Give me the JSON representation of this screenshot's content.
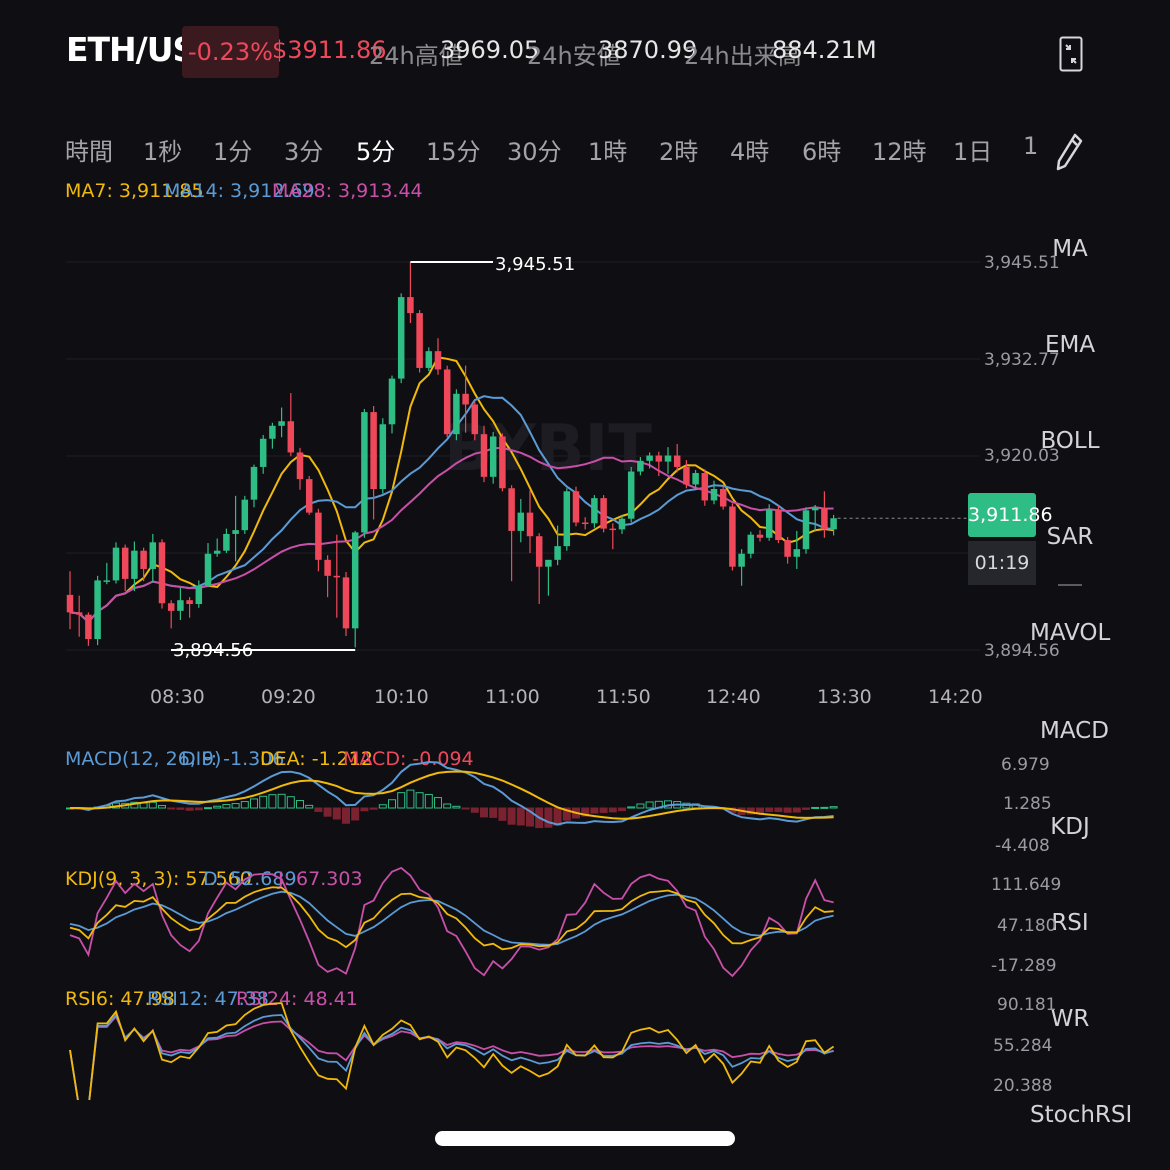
{
  "header": {
    "pair": "ETH/USDT",
    "change": "-0.23%",
    "price": "$3911.86",
    "high_label": "24h高値",
    "high_value": "3969.05",
    "low_label": "24h安値",
    "low_value": "3870.99",
    "vol_label": "24h出来高",
    "vol_value": "884.21M"
  },
  "timeframes": [
    "時間",
    "1秒",
    "1分",
    "3分",
    "5分",
    "15分",
    "30分",
    "1時",
    "2時",
    "4時",
    "6時",
    "12時",
    "1日",
    "1"
  ],
  "active_timeframe": "5分",
  "ma_legend": {
    "ma7": "MA7: 3,911.85",
    "ma14": "MA14: 3,912.69",
    "ma28": "MA28: 3,913.44"
  },
  "side_tabs": [
    "MA",
    "EMA",
    "BOLL",
    "SAR",
    "MAVOL",
    "MACD",
    "KDJ",
    "RSI",
    "WR",
    "StochRSI"
  ],
  "price_axis": [
    "3,945.51",
    "3,932.77",
    "3,920.03",
    "3,894.56"
  ],
  "current_price_tag": "3,911.86",
  "countdown": "01:19",
  "high_marker": "3,945.51",
  "low_marker": "3,894.56",
  "time_axis": [
    "08:30",
    "09:20",
    "10:10",
    "11:00",
    "11:50",
    "12:40",
    "13:30",
    "14:20"
  ],
  "macd": {
    "legend_title": "MACD(12, 26, 9)",
    "dif": "DIF: -1.306",
    "dea": "DEA: -1.212",
    "macd": "MACD: -0.094",
    "axis": [
      "6.979",
      "1.285",
      "-4.408"
    ]
  },
  "kdj": {
    "legend_title": "KDJ(9, 3, 3): 57.560",
    "d": "D: 52.689",
    "j": "J: 67.303",
    "axis": [
      "111.649",
      "47.180",
      "-17.289"
    ]
  },
  "rsi": {
    "rsi6": "RSI6: 47.98",
    "rsi12": "RSI12: 47.38",
    "rsi24": "RSI24: 48.41",
    "axis": [
      "90.181",
      "55.284",
      "20.388"
    ]
  },
  "colors": {
    "up": "#2ebd85",
    "down": "#f0485b",
    "ma7": "#f0b90b",
    "ma14": "#5b9bd5",
    "ma28": "#c850a8",
    "bg": "#0f0f13"
  },
  "chart_data": {
    "type": "candlestick",
    "interval": "5分",
    "ylim": [
      3894.56,
      3945.51
    ],
    "x_ticks": [
      "08:30",
      "09:20",
      "10:10",
      "11:00",
      "11:50",
      "12:40",
      "13:30",
      "14:20"
    ],
    "candles": [
      [
        3901.8,
        3904.9,
        3897.3,
        3899.5
      ],
      [
        3899.5,
        3901.7,
        3896.3,
        3899.2
      ],
      [
        3899.2,
        3899.5,
        3895.1,
        3896.0
      ],
      [
        3896.0,
        3904.3,
        3895.2,
        3903.7
      ],
      [
        3903.7,
        3906.0,
        3903.2,
        3903.7
      ],
      [
        3903.7,
        3908.7,
        3903.3,
        3908.0
      ],
      [
        3908.0,
        3908.4,
        3902.3,
        3903.9
      ],
      [
        3903.9,
        3908.8,
        3902.3,
        3907.6
      ],
      [
        3907.6,
        3908.0,
        3903.6,
        3905.2
      ],
      [
        3905.2,
        3909.8,
        3903.4,
        3908.7
      ],
      [
        3908.7,
        3909.1,
        3900.0,
        3900.7
      ],
      [
        3900.7,
        3901.1,
        3897.4,
        3899.7
      ],
      [
        3899.7,
        3902.7,
        3898.5,
        3901.1
      ],
      [
        3901.1,
        3901.5,
        3898.8,
        3900.6
      ],
      [
        3900.6,
        3903.7,
        3900.1,
        3903.0
      ],
      [
        3903.0,
        3908.6,
        3902.8,
        3907.2
      ],
      [
        3907.2,
        3909.2,
        3906.8,
        3907.6
      ],
      [
        3907.6,
        3910.5,
        3907.3,
        3909.8
      ],
      [
        3909.8,
        3914.8,
        3906.2,
        3910.3
      ],
      [
        3910.3,
        3914.8,
        3909.8,
        3914.3
      ],
      [
        3914.3,
        3918.9,
        3913.3,
        3918.6
      ],
      [
        3918.6,
        3922.8,
        3917.7,
        3922.3
      ],
      [
        3922.3,
        3924.4,
        3921.0,
        3924.0
      ],
      [
        3924.0,
        3926.4,
        3922.5,
        3924.6
      ],
      [
        3924.6,
        3928.3,
        3920.0,
        3920.5
      ],
      [
        3920.5,
        3921.1,
        3915.6,
        3917.0
      ],
      [
        3917.0,
        3917.4,
        3912.3,
        3912.6
      ],
      [
        3912.6,
        3913.1,
        3904.9,
        3906.4
      ],
      [
        3906.4,
        3907.0,
        3901.5,
        3904.3
      ],
      [
        3904.3,
        3909.7,
        3898.8,
        3904.1
      ],
      [
        3904.1,
        3904.8,
        3896.4,
        3897.4
      ],
      [
        3897.4,
        3910.2,
        3894.9,
        3910.0
      ],
      [
        3910.0,
        3926.2,
        3909.3,
        3925.8
      ],
      [
        3925.8,
        3926.6,
        3911.7,
        3915.7
      ],
      [
        3915.7,
        3925.0,
        3915.1,
        3924.2
      ],
      [
        3924.2,
        3930.6,
        3923.0,
        3930.2
      ],
      [
        3930.2,
        3941.4,
        3929.6,
        3940.9
      ],
      [
        3940.9,
        3945.5,
        3937.5,
        3938.8
      ],
      [
        3938.8,
        3939.2,
        3931.0,
        3931.6
      ],
      [
        3931.6,
        3934.3,
        3931.2,
        3933.8
      ],
      [
        3933.8,
        3935.5,
        3930.7,
        3931.4
      ],
      [
        3931.4,
        3931.9,
        3922.5,
        3922.9
      ],
      [
        3922.9,
        3928.8,
        3922.1,
        3928.2
      ],
      [
        3928.2,
        3931.9,
        3923.1,
        3926.8
      ],
      [
        3926.8,
        3927.2,
        3922.1,
        3922.9
      ],
      [
        3922.9,
        3924.0,
        3916.6,
        3917.3
      ],
      [
        3917.3,
        3923.2,
        3916.4,
        3922.6
      ],
      [
        3922.6,
        3923.0,
        3915.4,
        3915.8
      ],
      [
        3915.8,
        3916.2,
        3903.6,
        3910.2
      ],
      [
        3910.2,
        3914.4,
        3908.7,
        3912.6
      ],
      [
        3912.6,
        3915.5,
        3907.3,
        3909.5
      ],
      [
        3909.5,
        3909.9,
        3900.6,
        3905.5
      ],
      [
        3905.5,
        3905.9,
        3901.7,
        3906.4
      ],
      [
        3906.4,
        3910.9,
        3905.7,
        3908.2
      ],
      [
        3908.2,
        3915.8,
        3907.6,
        3915.4
      ],
      [
        3915.4,
        3916.0,
        3910.8,
        3911.3
      ],
      [
        3911.3,
        3912.0,
        3910.4,
        3911.2
      ],
      [
        3911.2,
        3914.9,
        3910.6,
        3914.5
      ],
      [
        3914.5,
        3914.9,
        3910.0,
        3910.5
      ],
      [
        3910.5,
        3911.2,
        3907.8,
        3910.4
      ],
      [
        3910.4,
        3912.3,
        3909.8,
        3911.8
      ],
      [
        3911.8,
        3918.6,
        3911.3,
        3918.0
      ],
      [
        3918.0,
        3919.9,
        3917.5,
        3919.4
      ],
      [
        3919.4,
        3920.5,
        3918.4,
        3920.1
      ],
      [
        3920.1,
        3920.6,
        3917.4,
        3919.3
      ],
      [
        3919.3,
        3921.2,
        3917.7,
        3920.1
      ],
      [
        3920.1,
        3921.6,
        3917.9,
        3918.6
      ],
      [
        3918.6,
        3919.5,
        3915.8,
        3916.3
      ],
      [
        3916.3,
        3918.2,
        3915.6,
        3917.8
      ],
      [
        3917.8,
        3918.3,
        3913.5,
        3914.2
      ],
      [
        3914.2,
        3916.8,
        3913.7,
        3915.7
      ],
      [
        3915.7,
        3916.1,
        3913.0,
        3913.4
      ],
      [
        3913.4,
        3913.8,
        3905.0,
        3905.5
      ],
      [
        3905.5,
        3907.8,
        3903.0,
        3907.2
      ],
      [
        3907.2,
        3910.1,
        3906.6,
        3909.7
      ],
      [
        3909.7,
        3910.3,
        3908.8,
        3909.3
      ],
      [
        3909.3,
        3913.7,
        3908.9,
        3913.0
      ],
      [
        3913.0,
        3913.5,
        3908.6,
        3909.0
      ],
      [
        3909.0,
        3909.4,
        3905.9,
        3906.8
      ],
      [
        3906.8,
        3910.2,
        3905.2,
        3907.8
      ],
      [
        3907.8,
        3913.3,
        3907.2,
        3912.9
      ],
      [
        3912.9,
        3913.6,
        3910.1,
        3913.2
      ],
      [
        3913.2,
        3915.4,
        3909.3,
        3910.4
      ],
      [
        3910.4,
        3912.3,
        3909.6,
        3911.86
      ]
    ],
    "ma7_last": 3911.85,
    "ma14_last": 3912.69,
    "ma28_last": 3913.44,
    "high": 3945.51,
    "low": 3894.56
  }
}
